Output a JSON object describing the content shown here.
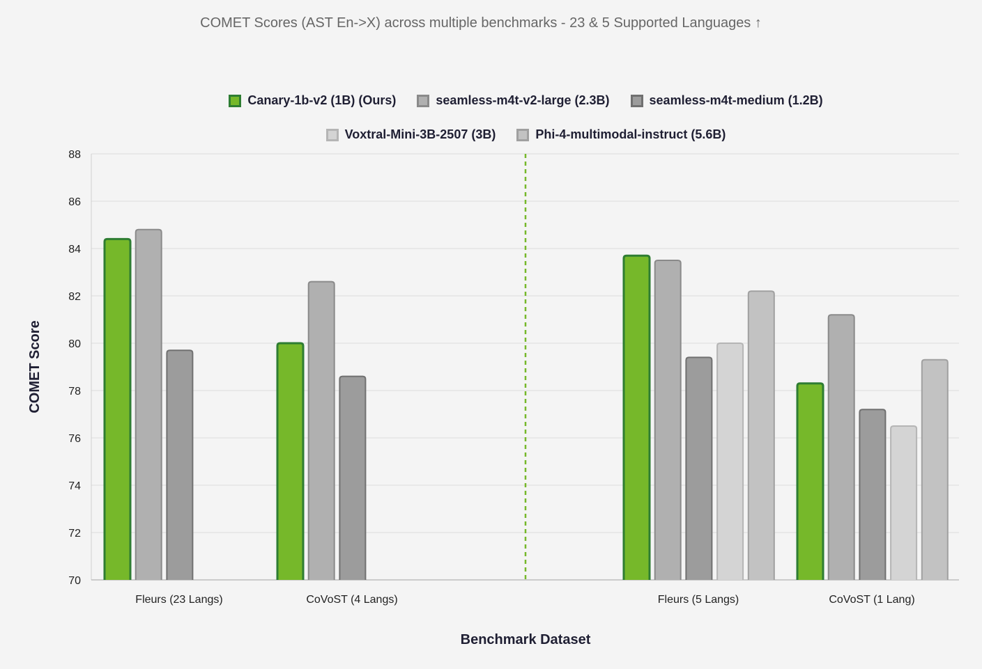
{
  "chart_data": {
    "type": "bar",
    "title": "COMET Scores (AST En->X) across multiple benchmarks - 23 & 5 Supported Languages ↑",
    "xlabel": "Benchmark Dataset",
    "ylabel": "COMET Score",
    "ylim": [
      70,
      88
    ],
    "yticks": [
      70,
      72,
      74,
      76,
      78,
      80,
      82,
      84,
      86,
      88
    ],
    "grid": true,
    "legend_position": "top",
    "categories": [
      "Fleurs (23 Langs)",
      "CoVoST (4 Langs)",
      "Fleurs (5 Langs)",
      "CoVoST (1 Lang)"
    ],
    "separator": "dashed line between CoVoST (4 Langs) and Fleurs (5 Langs)",
    "series": [
      {
        "name": "Canary-1b-v2 (1B) (Ours)",
        "color": "#76b82a",
        "border": "#2e7d32",
        "values": [
          84.4,
          80.0,
          83.7,
          78.3
        ]
      },
      {
        "name": "seamless-m4t-v2-large (2.3B)",
        "color": "#b0b0b0",
        "border": "#8a8a8a",
        "values": [
          84.8,
          82.6,
          83.5,
          81.2
        ]
      },
      {
        "name": "seamless-m4t-medium (1.2B)",
        "color": "#9c9c9c",
        "border": "#707070",
        "values": [
          79.7,
          78.6,
          79.4,
          77.2
        ]
      },
      {
        "name": "Voxtral-Mini-3B-2507 (3B)",
        "color": "#d4d4d4",
        "border": "#b5b5b5",
        "values": [
          null,
          null,
          80.0,
          76.5
        ]
      },
      {
        "name": "Phi-4-multimodal-instruct (5.6B)",
        "color": "#c2c2c2",
        "border": "#a0a0a0",
        "values": [
          null,
          null,
          82.2,
          79.3
        ]
      }
    ]
  }
}
